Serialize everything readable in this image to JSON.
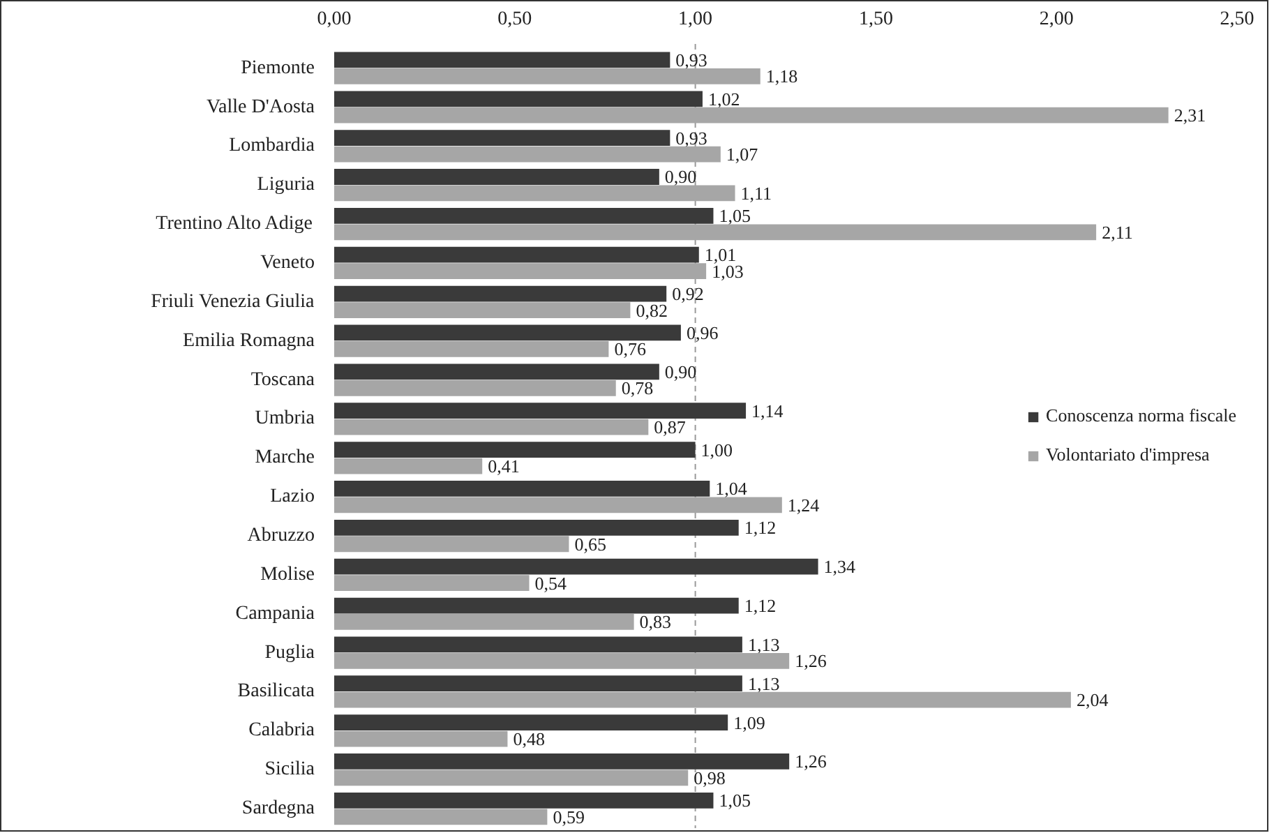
{
  "chart_data": {
    "type": "bar",
    "orientation": "horizontal",
    "categories": [
      "Piemonte",
      "Valle D'Aosta",
      "Lombardia",
      "Liguria",
      "Trentino Alto Adige",
      "Veneto",
      "Friuli Venezia Giulia",
      "Emilia Romagna",
      "Toscana",
      "Umbria",
      "Marche",
      "Lazio",
      "Abruzzo",
      "Molise",
      "Campania",
      "Puglia",
      "Basilicata",
      "Calabria",
      "Sicilia",
      "Sardegna"
    ],
    "series": [
      {
        "name": "Conoscenza norma fiscale",
        "color": "#3a3a3a",
        "values": [
          0.93,
          1.02,
          0.93,
          0.9,
          1.05,
          1.01,
          0.92,
          0.96,
          0.9,
          1.14,
          1.0,
          1.04,
          1.12,
          1.34,
          1.12,
          1.13,
          1.13,
          1.09,
          1.26,
          1.05
        ],
        "value_labels": [
          "0,93",
          "1,02",
          "0,93",
          "0,90",
          "1,05",
          "1,01",
          "0,92",
          "0,96",
          "0,90",
          "1,14",
          "1,00",
          "1,04",
          "1,12",
          "1,34",
          "1,12",
          "1,13",
          "1,13",
          "1,09",
          "1,26",
          "1,05"
        ]
      },
      {
        "name": "Volontariato d'impresa",
        "color": "#a6a6a6",
        "values": [
          1.18,
          2.31,
          1.07,
          1.11,
          2.11,
          1.03,
          0.82,
          0.76,
          0.78,
          0.87,
          0.41,
          1.24,
          0.65,
          0.54,
          0.83,
          1.26,
          2.04,
          0.48,
          0.98,
          0.59
        ],
        "value_labels": [
          "1,18",
          "2,31",
          "1,07",
          "1,11",
          "2,11",
          "1,03",
          "0,82",
          "0,76",
          "0,78",
          "0,87",
          "0,41",
          "1,24",
          "0,65",
          "0,54",
          "0,83",
          "1,26",
          "2,04",
          "0,48",
          "0,98",
          "0,59"
        ]
      }
    ],
    "xlim": [
      0,
      2.5
    ],
    "xticks": [
      {
        "value": 0,
        "label": "0,00"
      },
      {
        "value": 0.5,
        "label": "0,50"
      },
      {
        "value": 1,
        "label": "1,00"
      },
      {
        "value": 1.5,
        "label": "1,50"
      },
      {
        "value": 2,
        "label": "2,00"
      },
      {
        "value": 2.5,
        "label": "2,50"
      }
    ],
    "ref_lines": [
      {
        "axis": "x",
        "value": 1,
        "color": "#9a9a9a",
        "line_style": "dashed"
      }
    ],
    "legend": "right",
    "grid": false
  }
}
